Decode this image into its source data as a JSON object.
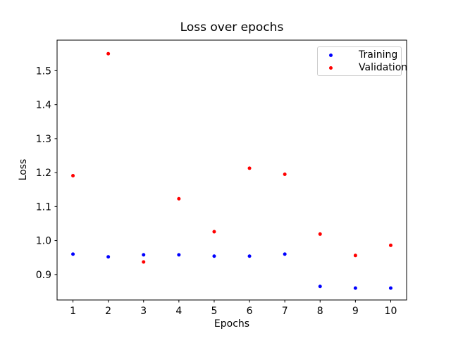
{
  "figure": {
    "background": "#ffffff",
    "frame_color": "#000000",
    "text_color": "#000000"
  },
  "chart_data": {
    "type": "scatter",
    "title": "Loss over epochs",
    "xlabel": "Epochs",
    "ylabel": "Loss",
    "x": [
      1,
      2,
      3,
      4,
      5,
      6,
      7,
      8,
      9,
      10
    ],
    "series": [
      {
        "name": "Training",
        "color": "#0000ff",
        "values": [
          0.96,
          0.952,
          0.958,
          0.958,
          0.954,
          0.954,
          0.96,
          0.865,
          0.86,
          0.86
        ]
      },
      {
        "name": "Validation",
        "color": "#ff0000",
        "values": [
          1.191,
          1.55,
          0.937,
          1.123,
          1.026,
          1.213,
          1.195,
          1.019,
          0.956,
          0.986
        ]
      }
    ],
    "xlim": [
      0.55,
      10.45
    ],
    "ylim": [
      0.825,
      1.59
    ],
    "xticks": [
      1,
      2,
      3,
      4,
      5,
      6,
      7,
      8,
      9,
      10
    ],
    "yticks": [
      0.9,
      1.0,
      1.1,
      1.2,
      1.3,
      1.4,
      1.5
    ],
    "grid": false,
    "legend_position": "upper right",
    "marker_radius_px": 2.5
  }
}
